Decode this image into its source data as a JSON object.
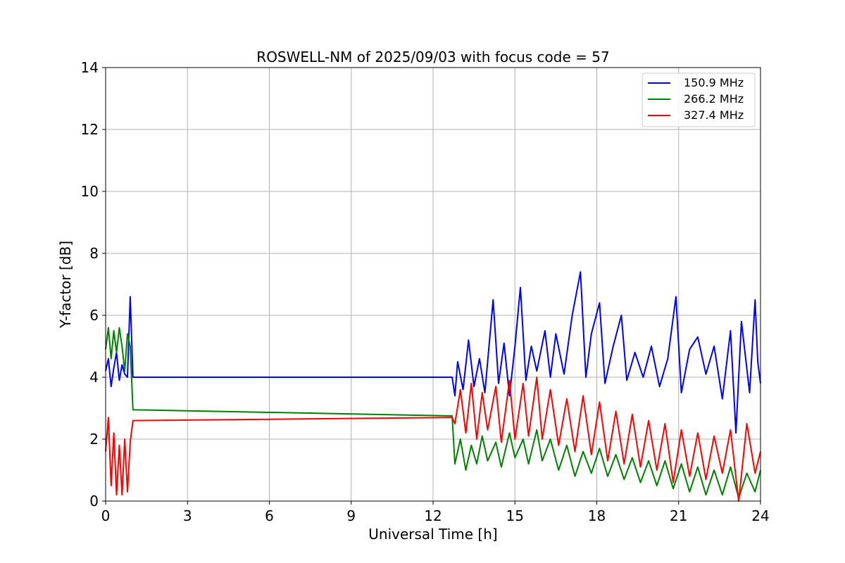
{
  "chart_data": {
    "type": "line",
    "title": "ROSWELL-NM of 2025/09/03 with focus code = 57",
    "xlabel": "Universal Time [h]",
    "ylabel": "Y-factor [dB]",
    "xlim": [
      0,
      24
    ],
    "ylim": [
      0,
      14
    ],
    "xticks": [
      0,
      3,
      6,
      9,
      12,
      15,
      18,
      21,
      24
    ],
    "yticks": [
      0,
      2,
      4,
      6,
      8,
      10,
      12,
      14
    ],
    "grid": true,
    "legend_position": "top-right",
    "series": [
      {
        "name": "150.9 MHz",
        "color": "#0000ff",
        "points": [
          [
            0.0,
            4.2
          ],
          [
            0.1,
            4.6
          ],
          [
            0.2,
            3.7
          ],
          [
            0.3,
            4.3
          ],
          [
            0.4,
            4.8
          ],
          [
            0.5,
            3.9
          ],
          [
            0.6,
            4.4
          ],
          [
            0.7,
            4.1
          ],
          [
            0.8,
            4.0
          ],
          [
            0.9,
            6.6
          ],
          [
            1.0,
            4.0
          ],
          [
            12.7,
            4.0
          ],
          [
            12.8,
            3.4
          ],
          [
            12.9,
            4.5
          ],
          [
            13.1,
            3.6
          ],
          [
            13.3,
            5.2
          ],
          [
            13.5,
            3.7
          ],
          [
            13.7,
            4.6
          ],
          [
            13.9,
            3.5
          ],
          [
            14.2,
            6.5
          ],
          [
            14.4,
            3.8
          ],
          [
            14.6,
            5.1
          ],
          [
            14.8,
            3.4
          ],
          [
            15.0,
            5.0
          ],
          [
            15.2,
            6.9
          ],
          [
            15.4,
            3.9
          ],
          [
            15.6,
            5.0
          ],
          [
            15.8,
            4.2
          ],
          [
            16.1,
            5.5
          ],
          [
            16.3,
            4.0
          ],
          [
            16.5,
            5.4
          ],
          [
            16.8,
            4.1
          ],
          [
            17.1,
            6.0
          ],
          [
            17.4,
            7.4
          ],
          [
            17.6,
            4.0
          ],
          [
            17.8,
            5.4
          ],
          [
            18.1,
            6.4
          ],
          [
            18.3,
            3.8
          ],
          [
            18.6,
            5.0
          ],
          [
            18.9,
            6.0
          ],
          [
            19.1,
            3.9
          ],
          [
            19.4,
            4.8
          ],
          [
            19.7,
            4.0
          ],
          [
            20.0,
            5.0
          ],
          [
            20.3,
            3.7
          ],
          [
            20.6,
            4.6
          ],
          [
            20.9,
            6.6
          ],
          [
            21.1,
            3.5
          ],
          [
            21.4,
            4.9
          ],
          [
            21.7,
            5.3
          ],
          [
            22.0,
            4.1
          ],
          [
            22.3,
            5.0
          ],
          [
            22.6,
            3.3
          ],
          [
            22.9,
            5.5
          ],
          [
            23.1,
            2.2
          ],
          [
            23.3,
            5.8
          ],
          [
            23.6,
            3.5
          ],
          [
            23.8,
            6.5
          ],
          [
            23.9,
            4.5
          ],
          [
            24.0,
            3.8
          ]
        ]
      },
      {
        "name": "266.2 MHz",
        "color": "#008000",
        "points": [
          [
            0.0,
            4.9
          ],
          [
            0.1,
            5.6
          ],
          [
            0.2,
            4.6
          ],
          [
            0.3,
            5.5
          ],
          [
            0.4,
            4.8
          ],
          [
            0.5,
            5.6
          ],
          [
            0.6,
            5.0
          ],
          [
            0.7,
            4.2
          ],
          [
            0.8,
            5.4
          ],
          [
            0.9,
            5.0
          ],
          [
            1.0,
            2.95
          ],
          [
            12.7,
            2.75
          ],
          [
            12.8,
            1.2
          ],
          [
            13.0,
            2.0
          ],
          [
            13.2,
            1.0
          ],
          [
            13.4,
            1.8
          ],
          [
            13.6,
            1.2
          ],
          [
            13.8,
            2.1
          ],
          [
            14.0,
            1.3
          ],
          [
            14.3,
            1.9
          ],
          [
            14.5,
            1.1
          ],
          [
            14.8,
            2.2
          ],
          [
            15.0,
            1.4
          ],
          [
            15.3,
            2.0
          ],
          [
            15.5,
            1.2
          ],
          [
            15.8,
            2.3
          ],
          [
            16.0,
            1.3
          ],
          [
            16.3,
            2.0
          ],
          [
            16.6,
            1.0
          ],
          [
            16.9,
            1.8
          ],
          [
            17.2,
            0.8
          ],
          [
            17.5,
            1.6
          ],
          [
            17.8,
            0.9
          ],
          [
            18.1,
            1.7
          ],
          [
            18.4,
            0.8
          ],
          [
            18.7,
            1.5
          ],
          [
            19.0,
            0.7
          ],
          [
            19.3,
            1.4
          ],
          [
            19.6,
            0.6
          ],
          [
            19.9,
            1.3
          ],
          [
            20.2,
            0.5
          ],
          [
            20.5,
            1.3
          ],
          [
            20.8,
            0.4
          ],
          [
            21.1,
            1.2
          ],
          [
            21.4,
            0.3
          ],
          [
            21.7,
            1.1
          ],
          [
            22.0,
            0.2
          ],
          [
            22.3,
            1.0
          ],
          [
            22.6,
            0.2
          ],
          [
            22.9,
            1.1
          ],
          [
            23.2,
            0.1
          ],
          [
            23.5,
            0.9
          ],
          [
            23.8,
            0.3
          ],
          [
            24.0,
            1.0
          ]
        ]
      },
      {
        "name": "327.4 MHz",
        "color": "#ff0000",
        "points": [
          [
            0.0,
            1.6
          ],
          [
            0.1,
            2.7
          ],
          [
            0.2,
            0.5
          ],
          [
            0.3,
            2.2
          ],
          [
            0.4,
            0.2
          ],
          [
            0.5,
            1.8
          ],
          [
            0.6,
            0.2
          ],
          [
            0.7,
            2.0
          ],
          [
            0.8,
            0.3
          ],
          [
            0.9,
            1.9
          ],
          [
            1.0,
            2.6
          ],
          [
            12.7,
            2.7
          ],
          [
            12.8,
            2.5
          ],
          [
            13.0,
            3.6
          ],
          [
            13.2,
            2.2
          ],
          [
            13.4,
            3.8
          ],
          [
            13.6,
            2.0
          ],
          [
            13.8,
            3.5
          ],
          [
            14.0,
            2.3
          ],
          [
            14.3,
            3.7
          ],
          [
            14.5,
            1.9
          ],
          [
            14.8,
            3.9
          ],
          [
            15.0,
            2.0
          ],
          [
            15.3,
            3.8
          ],
          [
            15.5,
            2.1
          ],
          [
            15.8,
            4.0
          ],
          [
            16.0,
            2.0
          ],
          [
            16.3,
            3.6
          ],
          [
            16.6,
            1.8
          ],
          [
            16.9,
            3.3
          ],
          [
            17.2,
            1.6
          ],
          [
            17.5,
            3.4
          ],
          [
            17.8,
            1.5
          ],
          [
            18.1,
            3.2
          ],
          [
            18.4,
            1.3
          ],
          [
            18.7,
            2.9
          ],
          [
            19.0,
            1.2
          ],
          [
            19.3,
            2.8
          ],
          [
            19.6,
            1.1
          ],
          [
            19.9,
            2.6
          ],
          [
            20.2,
            1.0
          ],
          [
            20.5,
            2.5
          ],
          [
            20.8,
            0.6
          ],
          [
            21.1,
            2.3
          ],
          [
            21.4,
            0.8
          ],
          [
            21.7,
            2.2
          ],
          [
            22.0,
            0.7
          ],
          [
            22.3,
            2.1
          ],
          [
            22.6,
            0.9
          ],
          [
            22.9,
            2.3
          ],
          [
            23.2,
            0.0
          ],
          [
            23.5,
            2.5
          ],
          [
            23.8,
            0.9
          ],
          [
            24.0,
            1.6
          ]
        ]
      }
    ]
  }
}
